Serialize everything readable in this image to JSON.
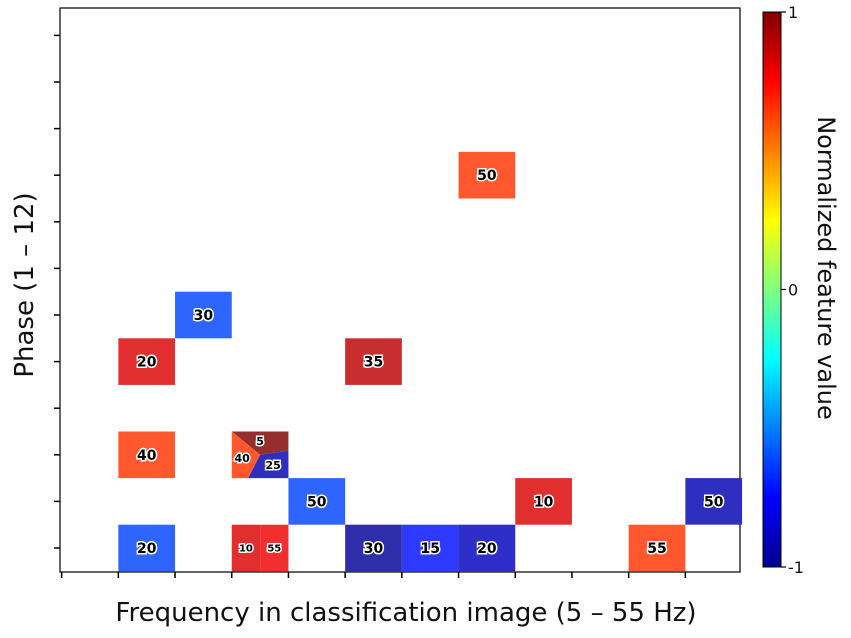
{
  "chart_data": {
    "type": "heatmap",
    "xlabel": "Frequency in classification image (5 – 55 Hz)",
    "ylabel": "Phase (1 – 12)",
    "colorbar": {
      "label": "Normalized feature value",
      "range": [
        -1,
        1
      ],
      "ticks": [
        {
          "value": 1,
          "label": "1"
        },
        {
          "value": 0,
          "label": "0"
        },
        {
          "value": -1,
          "label": "-1"
        }
      ],
      "colormap": "jet"
    },
    "cells": [
      {
        "col": 8,
        "row": 9,
        "label": "50",
        "value": 0.65
      },
      {
        "col": 3,
        "row": 6,
        "label": "30",
        "value": -0.62
      },
      {
        "col": 2,
        "row": 5,
        "label": "20",
        "value": 0.82
      },
      {
        "col": 6,
        "row": 5,
        "label": "35",
        "value": 0.88
      },
      {
        "col": 2,
        "row": 3,
        "label": "40",
        "value": 0.65
      },
      {
        "col": 5,
        "row": 2,
        "label": "50",
        "value": -0.62
      },
      {
        "col": 9,
        "row": 2,
        "label": "10",
        "value": 0.82
      },
      {
        "col": 12,
        "row": 2,
        "label": "50",
        "value": -0.9
      },
      {
        "col": 2,
        "row": 1,
        "label": "20",
        "value": -0.62
      },
      {
        "col": 6,
        "row": 1,
        "label": "30",
        "value": -0.95
      },
      {
        "col": 7,
        "row": 1,
        "label": "15",
        "value": -0.72
      },
      {
        "col": 8,
        "row": 1,
        "label": "20",
        "value": -0.88
      },
      {
        "col": 11,
        "row": 1,
        "label": "55",
        "value": 0.65
      }
    ],
    "half_cells": [
      {
        "col": 4,
        "row": 1,
        "part": "left",
        "label": "10",
        "value": 0.82
      },
      {
        "col": 4,
        "row": 1,
        "part": "right",
        "label": "55",
        "value": 0.78
      }
    ],
    "pie_cell": {
      "col": 4,
      "row": 3,
      "slices": [
        {
          "label": "5",
          "value": 1.0
        },
        {
          "label": "25",
          "value": -0.9
        },
        {
          "label": "40",
          "value": 0.65
        }
      ]
    }
  }
}
